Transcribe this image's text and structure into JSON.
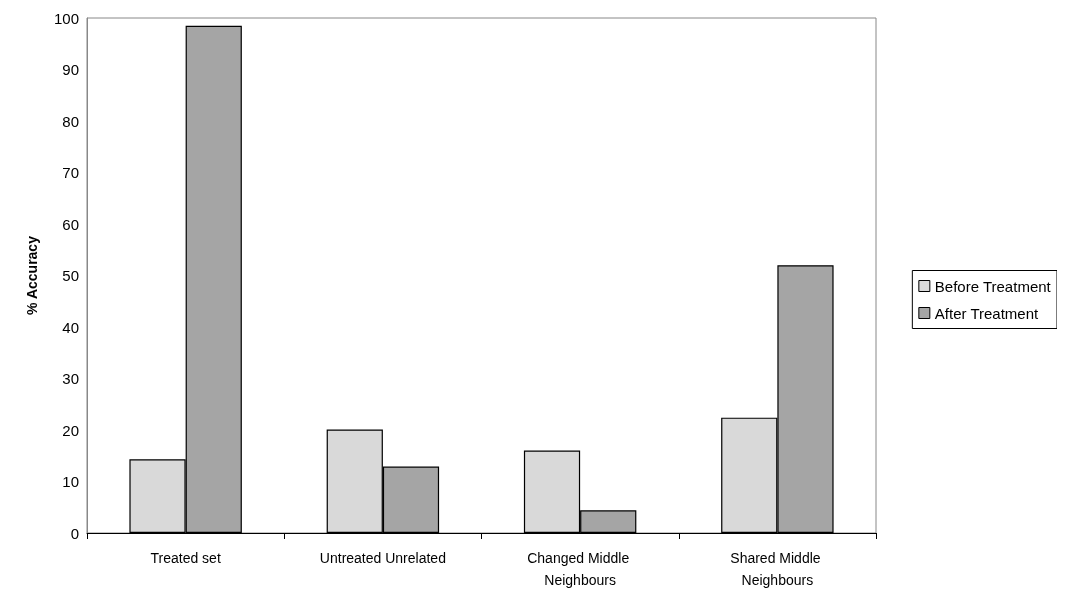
{
  "chart_data": {
    "type": "bar",
    "ylabel": "% Accuracy",
    "categories": [
      "Treated set",
      "Untreated Unrelated",
      "Changed Middle Neighbours",
      "Shared Middle Neighbours"
    ],
    "series": [
      {
        "name": "Before Treatment",
        "color": "#d9d9d9",
        "values": [
          14.3,
          20.1,
          16.0,
          22.4
        ]
      },
      {
        "name": "After Treatment",
        "color": "#a5a5a5",
        "values": [
          98.5,
          12.9,
          4.4,
          52.0
        ]
      }
    ],
    "ylim": [
      0,
      100
    ],
    "yticks": [
      0,
      10,
      20,
      30,
      40,
      50,
      60,
      70,
      80,
      90,
      100
    ],
    "grid": false,
    "legend": "right"
  }
}
